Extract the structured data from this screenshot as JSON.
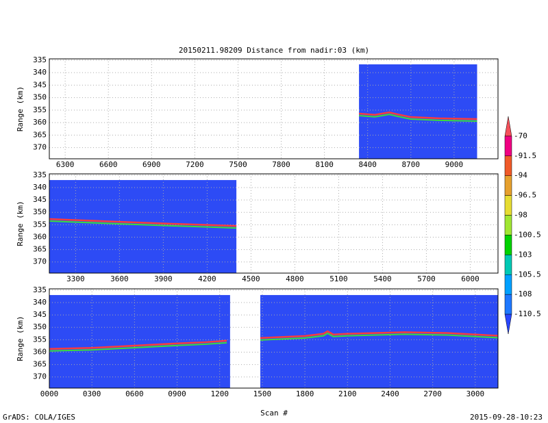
{
  "chart_data": [
    {
      "type": "image",
      "title": "20150211.98209    Distance from nadir:03 (km)",
      "ylabel": "Range (km)",
      "xlim": [
        6190,
        9305
      ],
      "ylim": [
        334.5,
        374.5
      ],
      "xticks": [
        6300,
        6600,
        6900,
        7200,
        7500,
        7800,
        8100,
        8400,
        8700,
        9000
      ],
      "yticks": [
        335,
        340,
        345,
        350,
        355,
        360,
        365,
        370
      ],
      "grid": true,
      "field_color": "#2d4bf5",
      "line_color": "#fa3c3c",
      "blocks": [
        {
          "x": [
            8340,
            9160
          ],
          "y": [
            336.7,
            374.5
          ]
        }
      ],
      "surface": {
        "x": [
          8340,
          8450,
          8550,
          8600,
          8700,
          8900,
          9160
        ],
        "values": [
          356.4,
          356.9,
          355.9,
          356.6,
          357.8,
          358.3,
          358.6
        ]
      }
    },
    {
      "type": "image",
      "ylabel": "Range (km)",
      "xlim": [
        3120,
        6190
      ],
      "ylim": [
        334.5,
        374.5
      ],
      "xticks": [
        3300,
        3600,
        3900,
        4200,
        4500,
        4800,
        5100,
        5400,
        5700,
        6000
      ],
      "yticks": [
        335,
        340,
        345,
        350,
        355,
        360,
        365,
        370
      ],
      "grid": true,
      "field_color": "#2d4bf5",
      "line_color": "#fa3c3c",
      "blocks": [
        {
          "x": [
            3120,
            4400
          ],
          "y": [
            337,
            374.5
          ]
        }
      ],
      "surface": {
        "x": [
          3120,
          3500,
          3900,
          4200,
          4400
        ],
        "values": [
          352.7,
          353.6,
          354.5,
          355.1,
          355.5
        ]
      }
    },
    {
      "type": "image",
      "ylabel": "Range (km)",
      "xlabel": "Scan #",
      "xlim": [
        0,
        3160
      ],
      "ylim": [
        334.5,
        374.5
      ],
      "xticks": [
        {
          "value": 0,
          "label": "0000"
        },
        {
          "value": 300,
          "label": "0300"
        },
        {
          "value": 600,
          "label": "0600"
        },
        {
          "value": 900,
          "label": "0900"
        },
        1200,
        1500,
        1800,
        2100,
        2400,
        2700,
        3000
      ],
      "yticks": [
        335,
        340,
        345,
        350,
        355,
        360,
        365,
        370
      ],
      "grid": true,
      "field_color": "#2d4bf5",
      "line_color": "#fa3c3c",
      "blocks": [
        {
          "x": [
            0,
            1273
          ],
          "y": [
            337,
            374.5
          ]
        },
        {
          "x": [
            1486,
            3160
          ],
          "y": [
            337,
            374.5
          ]
        }
      ],
      "surface": {
        "x": [
          0,
          300,
          600,
          900,
          1100,
          1250,
          null,
          1486,
          1800,
          1930,
          1960,
          2000,
          2100,
          2500,
          2800,
          3160
        ],
        "values": [
          358.7,
          358.3,
          357.4,
          356.5,
          356,
          355.4,
          null,
          354.3,
          353.5,
          352.6,
          351.6,
          352.9,
          352.6,
          352,
          352.3,
          353.4
        ]
      }
    }
  ],
  "colorbar": {
    "labels": [
      "-70",
      "-91.5",
      "-94",
      "-96.5",
      "-98",
      "-100.5",
      "-103",
      "-105.5",
      "-108",
      "-110.5"
    ],
    "colors": [
      "#f5505a",
      "#f00082",
      "#f05a28",
      "#e6a02d",
      "#e6dc32",
      "#a0e632",
      "#00d200",
      "#00c8b4",
      "#00a0ff",
      "#1e78ff",
      "#2846ff"
    ]
  },
  "footer": {
    "left": "GrADS: COLA/IGES",
    "right": "2015-09-28-10:23"
  }
}
